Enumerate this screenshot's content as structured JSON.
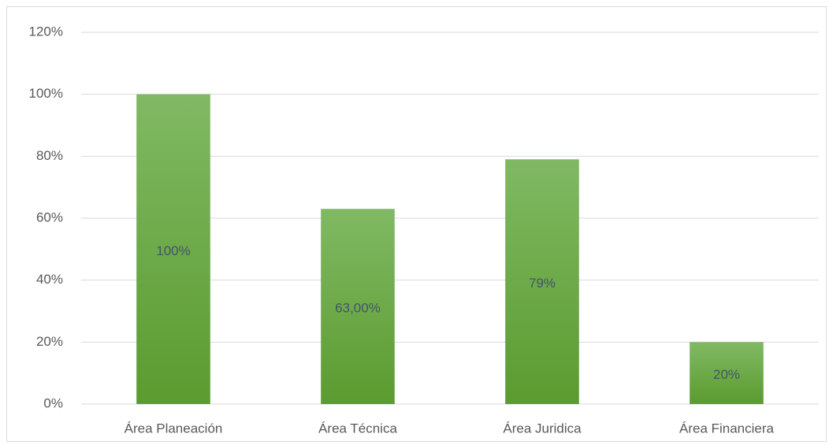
{
  "chart_data": {
    "type": "bar",
    "categories": [
      "Área Planeación",
      "Área Técnica",
      "Área Juridica",
      "Área Financiera"
    ],
    "values": [
      100,
      63,
      79,
      20
    ],
    "value_labels": [
      "100%",
      "63,00%",
      "79%",
      "20%"
    ],
    "color": "#6aa842",
    "ylim": [
      0,
      120
    ],
    "yticks": [
      {
        "value": 0,
        "label": "0%"
      },
      {
        "value": 20,
        "label": "20%"
      },
      {
        "value": 40,
        "label": "40%"
      },
      {
        "value": 60,
        "label": "60%"
      },
      {
        "value": 80,
        "label": "80%"
      },
      {
        "value": 100,
        "label": "100%"
      },
      {
        "value": 120,
        "label": "120%"
      }
    ],
    "grid": true
  }
}
